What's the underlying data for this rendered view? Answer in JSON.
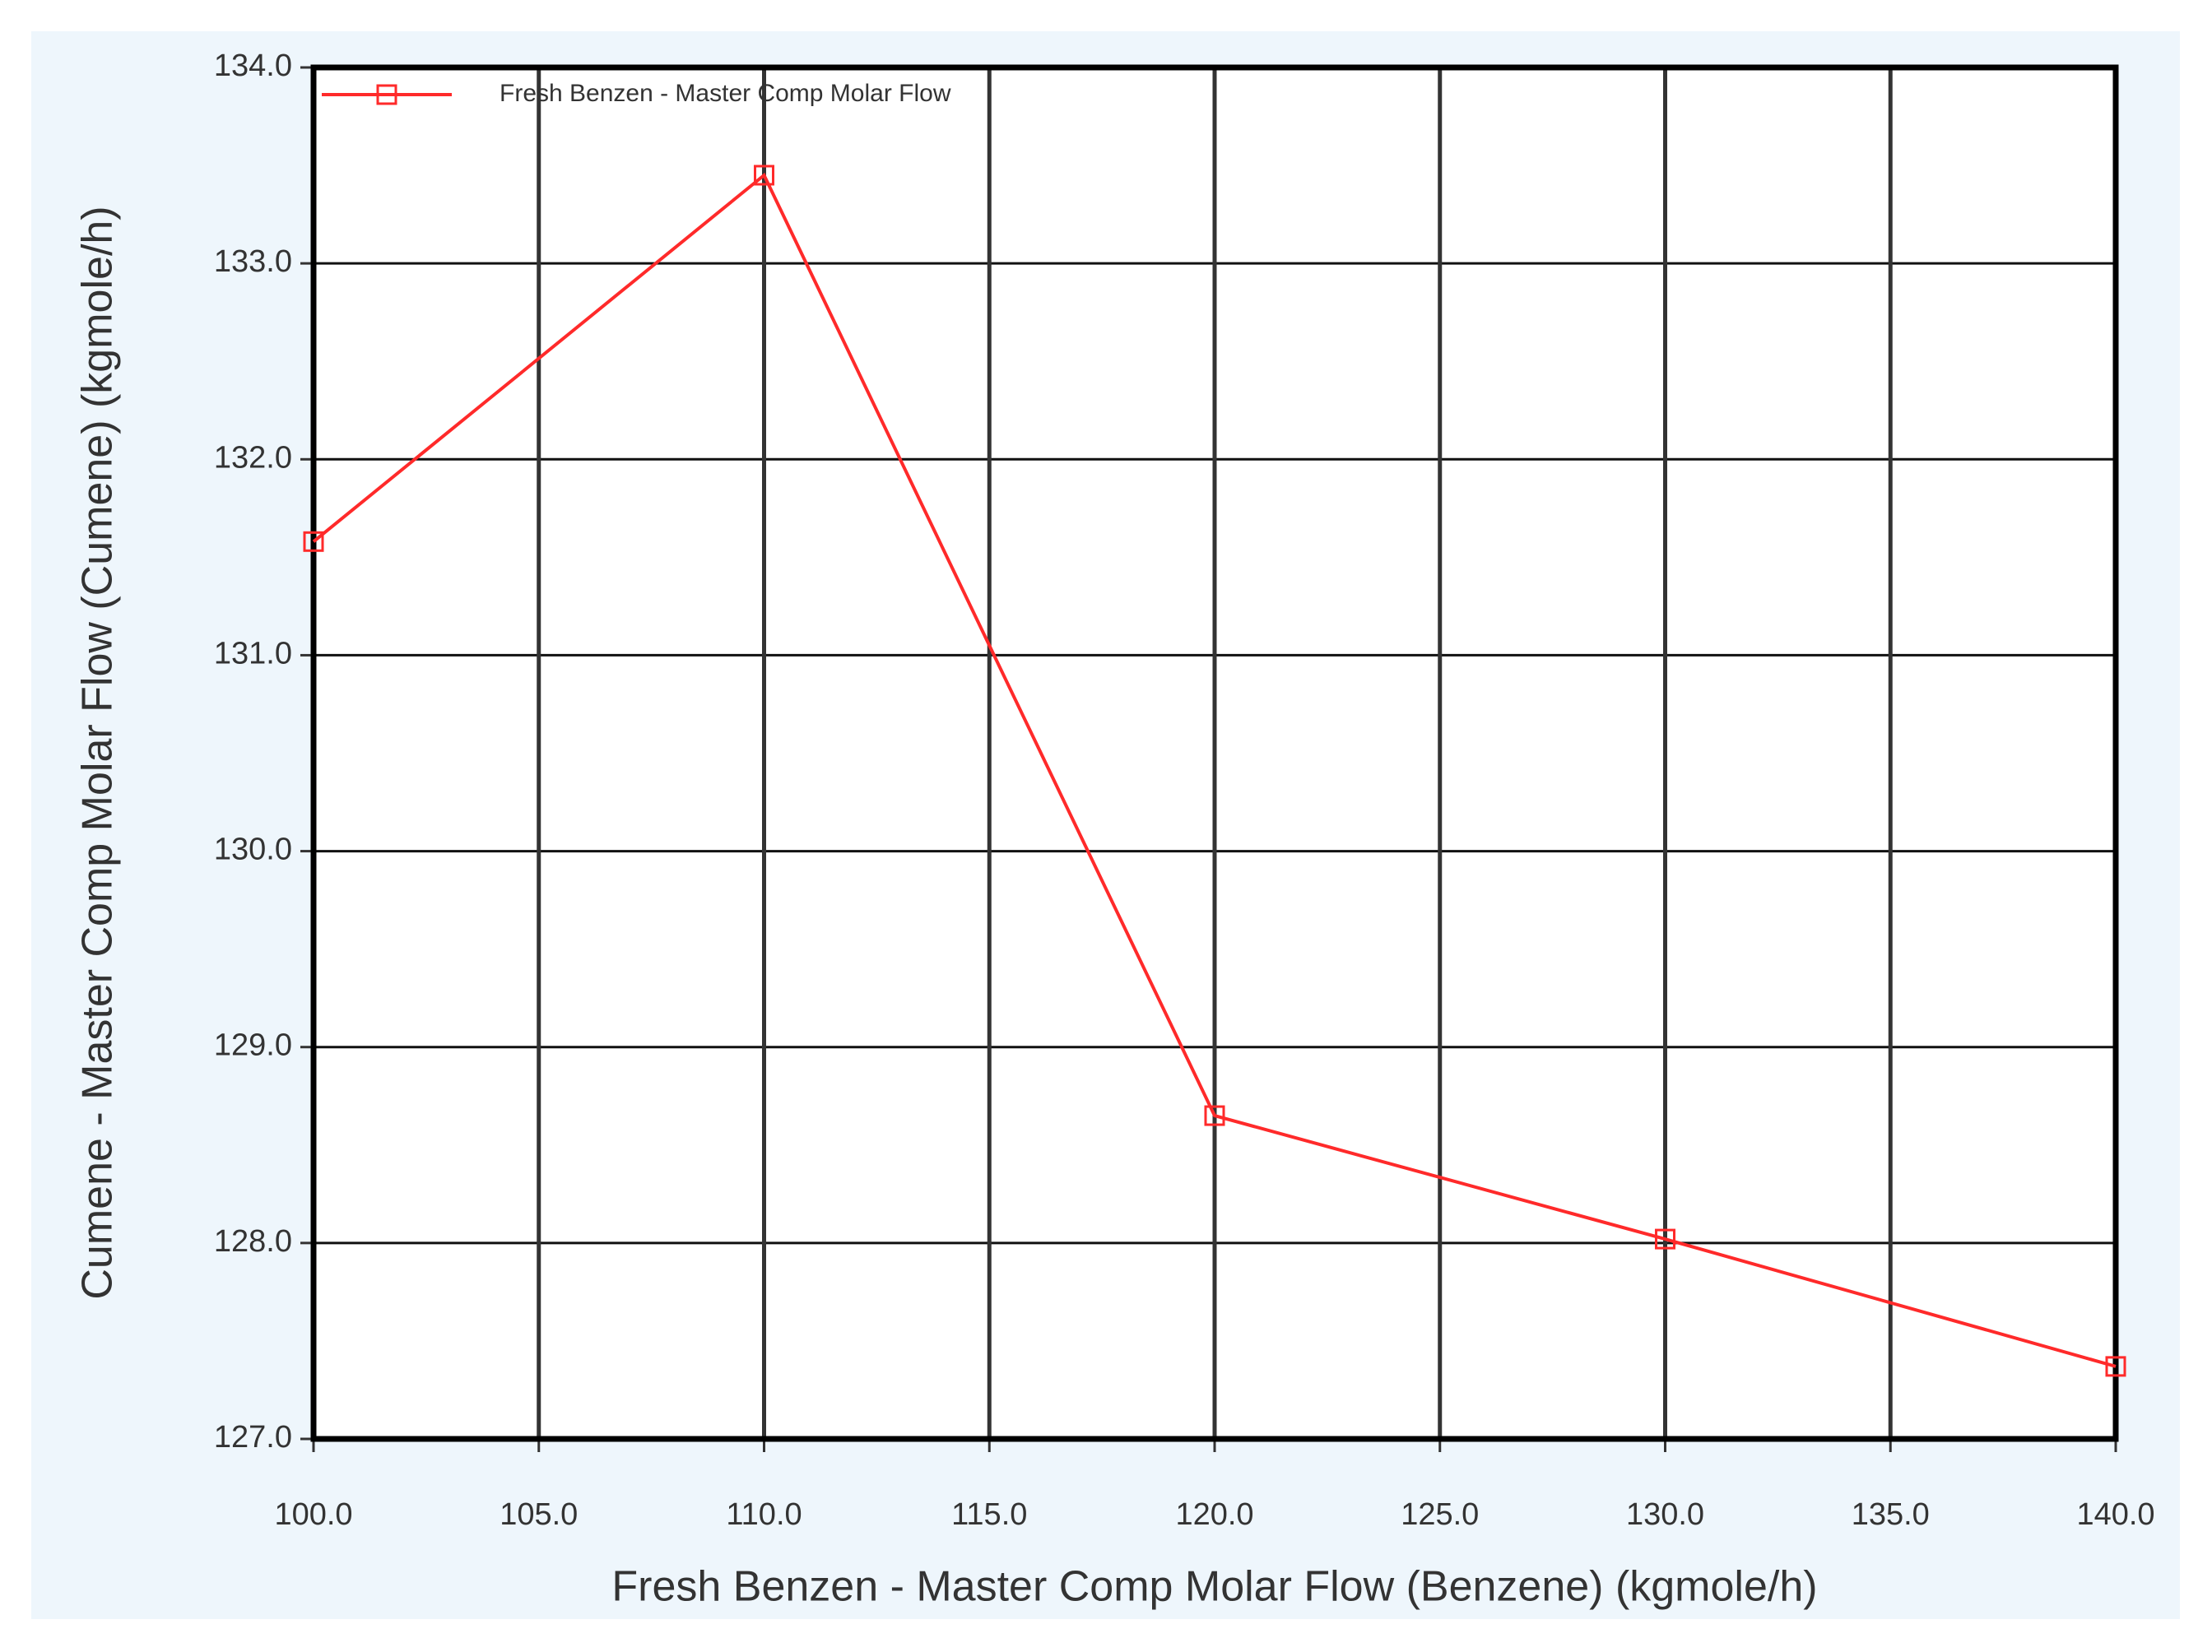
{
  "chart_data": {
    "type": "line",
    "x_label": "Fresh Benzen - Master Comp Molar Flow (Benzene) (kgmole/h)",
    "y_label": "Cumene - Master Comp Molar Flow (Cumene) (kgmole/h)",
    "x": [
      100,
      110,
      120,
      130,
      140
    ],
    "series": [
      {
        "name": "Fresh Benzen - Master Comp Molar Flow",
        "color": "#ff2a2a",
        "values": [
          131.58,
          133.45,
          128.65,
          128.02,
          127.37
        ]
      }
    ],
    "xlim": [
      100,
      140
    ],
    "xticks": [
      {
        "value": 100,
        "label": "100.0"
      },
      {
        "value": 105,
        "label": "105.0"
      },
      {
        "value": 110,
        "label": "110.0"
      },
      {
        "value": 115,
        "label": "115.0"
      },
      {
        "value": 120,
        "label": "120.0"
      },
      {
        "value": 125,
        "label": "125.0"
      },
      {
        "value": 130,
        "label": "130.0"
      },
      {
        "value": 135,
        "label": "135.0"
      },
      {
        "value": 140,
        "label": "140.0"
      }
    ],
    "ylim": [
      127,
      134
    ],
    "yticks": [
      {
        "value": 127,
        "label": "127.0"
      },
      {
        "value": 128,
        "label": "128.0"
      },
      {
        "value": 129,
        "label": "129.0"
      },
      {
        "value": 130,
        "label": "130.0"
      },
      {
        "value": 131,
        "label": "131.0"
      },
      {
        "value": 132,
        "label": "132.0"
      },
      {
        "value": 133,
        "label": "133.0"
      },
      {
        "value": 134,
        "label": "134.0"
      }
    ],
    "grid": true,
    "legend": "top-left"
  }
}
